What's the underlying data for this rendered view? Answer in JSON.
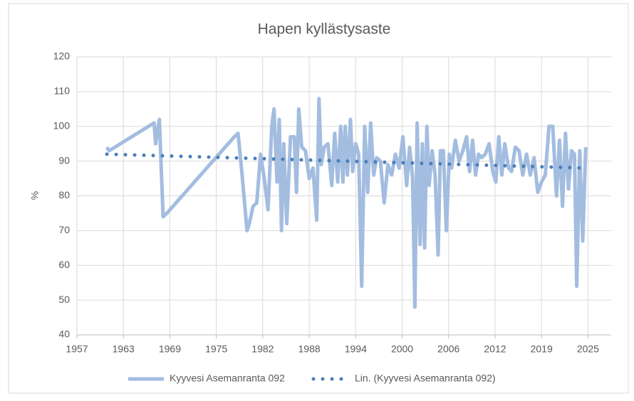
{
  "chart_data": {
    "type": "line",
    "title": "Hapen kyllästysaste",
    "y_label": "%",
    "xlim": [
      1957,
      2028.3
    ],
    "ylim": [
      40,
      120
    ],
    "xticks": [
      {
        "value": 1957,
        "label": "1957"
      },
      {
        "value": 1963.2,
        "label": "1963"
      },
      {
        "value": 1969.4,
        "label": "1969"
      },
      {
        "value": 1975.6,
        "label": "1975"
      },
      {
        "value": 1981.8,
        "label": "1982"
      },
      {
        "value": 1988,
        "label": "1988"
      },
      {
        "value": 1994.2,
        "label": "1994"
      },
      {
        "value": 2000.4,
        "label": "2000"
      },
      {
        "value": 2006.6,
        "label": "2006"
      },
      {
        "value": 2012.8,
        "label": "2012"
      },
      {
        "value": 2019,
        "label": "2019"
      },
      {
        "value": 2025.2,
        "label": "2025"
      }
    ],
    "yticks": [
      40,
      50,
      60,
      70,
      80,
      90,
      100,
      110,
      120
    ],
    "grid": true,
    "legend": "bottom",
    "series": [
      {
        "name": "Kyyvesi Asemanranta 092",
        "color": "#a3bde0",
        "style": "solid",
        "x": [
          1961,
          1961.3,
          1967.3,
          1967.5,
          1968,
          1968.5,
          1969,
          1978,
          1978.5,
          1979,
          1979.7,
          1980,
          1980.5,
          1981,
          1981.5,
          1982,
          1982.5,
          1983,
          1983.3,
          1983.7,
          1984,
          1984.3,
          1984.6,
          1985,
          1985.5,
          1986,
          1986.3,
          1986.6,
          1987,
          1987.5,
          1988,
          1988.5,
          1989,
          1989.3,
          1989.6,
          1990,
          1990.5,
          1991,
          1991.4,
          1991.8,
          1992.2,
          1992.5,
          1992.8,
          1993.1,
          1993.5,
          1993.8,
          1994.2,
          1994.6,
          1995,
          1995.4,
          1995.8,
          1996.2,
          1996.6,
          1997,
          1997.5,
          1998,
          1998.5,
          1999,
          1999.5,
          2000,
          2000.5,
          2001,
          2001.4,
          2001.8,
          2002.1,
          2002.4,
          2002.8,
          2003.1,
          2003.4,
          2003.7,
          2004,
          2004.4,
          2004.8,
          2005.2,
          2005.5,
          2005.9,
          2006.3,
          2006.7,
          2007,
          2007.5,
          2008,
          2008.5,
          2009,
          2009.4,
          2009.8,
          2010.2,
          2010.6,
          2011,
          2011.5,
          2012,
          2012.5,
          2012.9,
          2013.3,
          2013.7,
          2014.1,
          2014.6,
          2015,
          2015.5,
          2016,
          2016.5,
          2017,
          2017.5,
          2018,
          2018.5,
          2019,
          2019.5,
          2020,
          2020.5,
          2021,
          2021.4,
          2021.8,
          2022.2,
          2022.6,
          2023,
          2023.4,
          2023.7,
          2024.1,
          2024.5,
          2024.9
        ],
        "values": [
          94,
          93,
          101,
          95,
          102,
          74,
          75,
          97,
          98,
          87,
          70,
          72,
          77,
          78,
          92,
          85,
          76,
          100,
          105,
          84,
          102,
          70,
          95,
          72,
          97,
          97,
          81,
          105,
          94,
          93,
          85,
          88,
          73,
          108,
          89,
          94,
          95,
          83,
          98,
          84,
          100,
          84,
          100,
          86,
          102,
          87,
          95,
          92,
          54,
          100,
          81,
          101,
          86,
          91,
          90,
          78,
          89,
          86,
          92,
          88,
          97,
          83,
          94,
          85,
          48,
          101,
          66,
          95,
          65,
          100,
          83,
          93,
          86,
          63,
          93,
          93,
          70,
          92,
          88,
          96,
          90,
          93,
          97,
          87,
          96,
          86,
          92,
          91,
          92,
          95,
          87,
          84,
          97,
          86,
          95,
          88,
          87,
          94,
          93,
          86,
          92,
          86,
          91,
          81,
          84,
          86,
          100,
          100,
          80,
          96,
          77,
          98,
          82,
          93,
          92,
          54,
          93,
          67,
          94
        ]
      },
      {
        "name": "Lin. (Kyyvesi Asemanranta 092)",
        "color": "#4a7ebb",
        "style": "dotted",
        "x": [
          1961,
          2024.9
        ],
        "values": [
          92,
          88
        ]
      }
    ]
  }
}
